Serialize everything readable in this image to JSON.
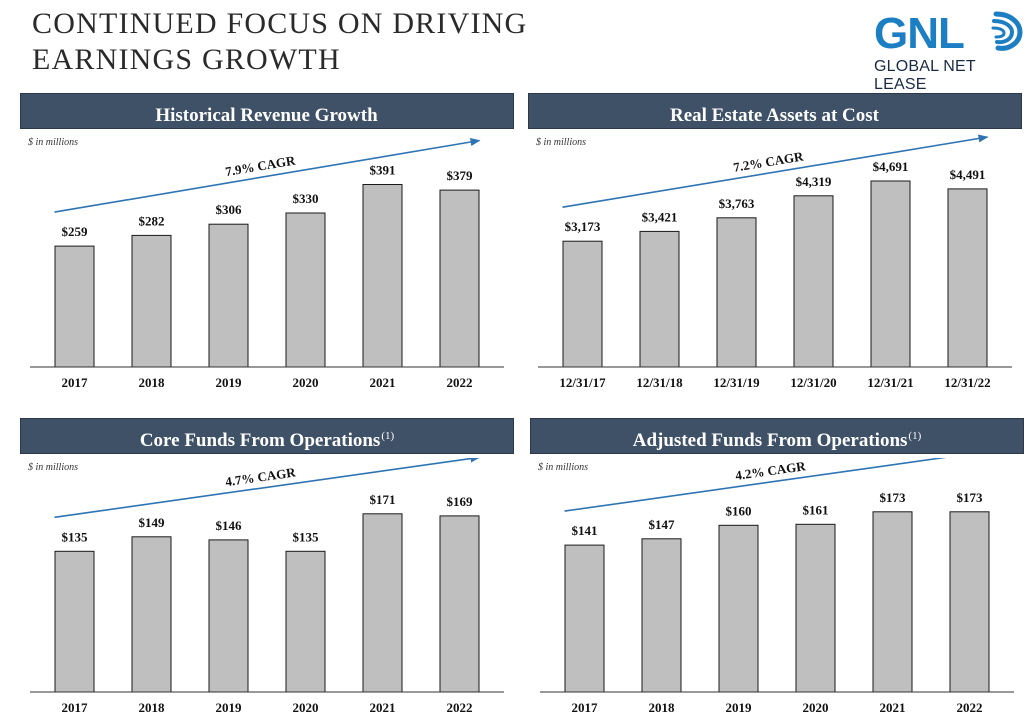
{
  "page": {
    "title_line1": "CONTINUED FOCUS ON DRIVING",
    "title_line2": "EARNINGS GROWTH"
  },
  "logo": {
    "mark": "GNL",
    "name": "GLOBAL NET LEASE",
    "icon": "swirl-logo-icon"
  },
  "colors": {
    "header_bg": "#3f5167",
    "bar_fill": "#bfbfbf",
    "arrow": "#2e74b5",
    "logo_blue": "#1d7fc3"
  },
  "panels": [
    {
      "title": "Historical Revenue Growth",
      "footnote": "",
      "units": "$ in millions",
      "cagr_label": "7.9% CAGR"
    },
    {
      "title": "Real Estate Assets at Cost",
      "footnote": "",
      "units": "$ in millions",
      "cagr_label": "7.2% CAGR"
    },
    {
      "title": "Core Funds From Operations",
      "footnote": "(1)",
      "units": "$ in millions",
      "cagr_label": "4.7% CAGR"
    },
    {
      "title": "Adjusted Funds From Operations",
      "footnote": "(1)",
      "units": "$ in millions",
      "cagr_label": "4.2% CAGR"
    }
  ],
  "chart_data": [
    {
      "type": "bar",
      "title": "Historical Revenue Growth",
      "categories": [
        "2017",
        "2018",
        "2019",
        "2020",
        "2021",
        "2022"
      ],
      "values": [
        259,
        282,
        306,
        330,
        391,
        379
      ],
      "labels": [
        "$259",
        "$282",
        "$306",
        "$330",
        "$391",
        "$379"
      ],
      "ylim": [
        0,
        480
      ],
      "annotation": "7.9% CAGR",
      "grid": false
    },
    {
      "type": "bar",
      "title": "Real Estate Assets at Cost",
      "categories": [
        "12/31/17",
        "12/31/18",
        "12/31/19",
        "12/31/20",
        "12/31/21",
        "12/31/22"
      ],
      "values": [
        3173,
        3421,
        3763,
        4319,
        4691,
        4491
      ],
      "labels": [
        "$3,173",
        "$3,421",
        "$3,763",
        "$4,319",
        "$4,691",
        "$4,491"
      ],
      "ylim": [
        0,
        5650
      ],
      "annotation": "7.2% CAGR",
      "grid": false
    },
    {
      "type": "bar",
      "title": "Core Funds From Operations",
      "categories": [
        "2017",
        "2018",
        "2019",
        "2020",
        "2021",
        "2022"
      ],
      "values": [
        135,
        149,
        146,
        135,
        171,
        169
      ],
      "labels": [
        "$135",
        "$149",
        "$146",
        "$135",
        "$171",
        "$169"
      ],
      "ylim": [
        0,
        215
      ],
      "annotation": "4.7% CAGR",
      "grid": false
    },
    {
      "type": "bar",
      "title": "Adjusted Funds From Operations",
      "categories": [
        "2017",
        "2018",
        "2019",
        "2020",
        "2021",
        "2022"
      ],
      "values": [
        141,
        147,
        160,
        161,
        173,
        173
      ],
      "labels": [
        "$141",
        "$147",
        "$160",
        "$161",
        "$173",
        "$173"
      ],
      "ylim": [
        0,
        215
      ],
      "annotation": "4.2% CAGR",
      "grid": false
    }
  ]
}
